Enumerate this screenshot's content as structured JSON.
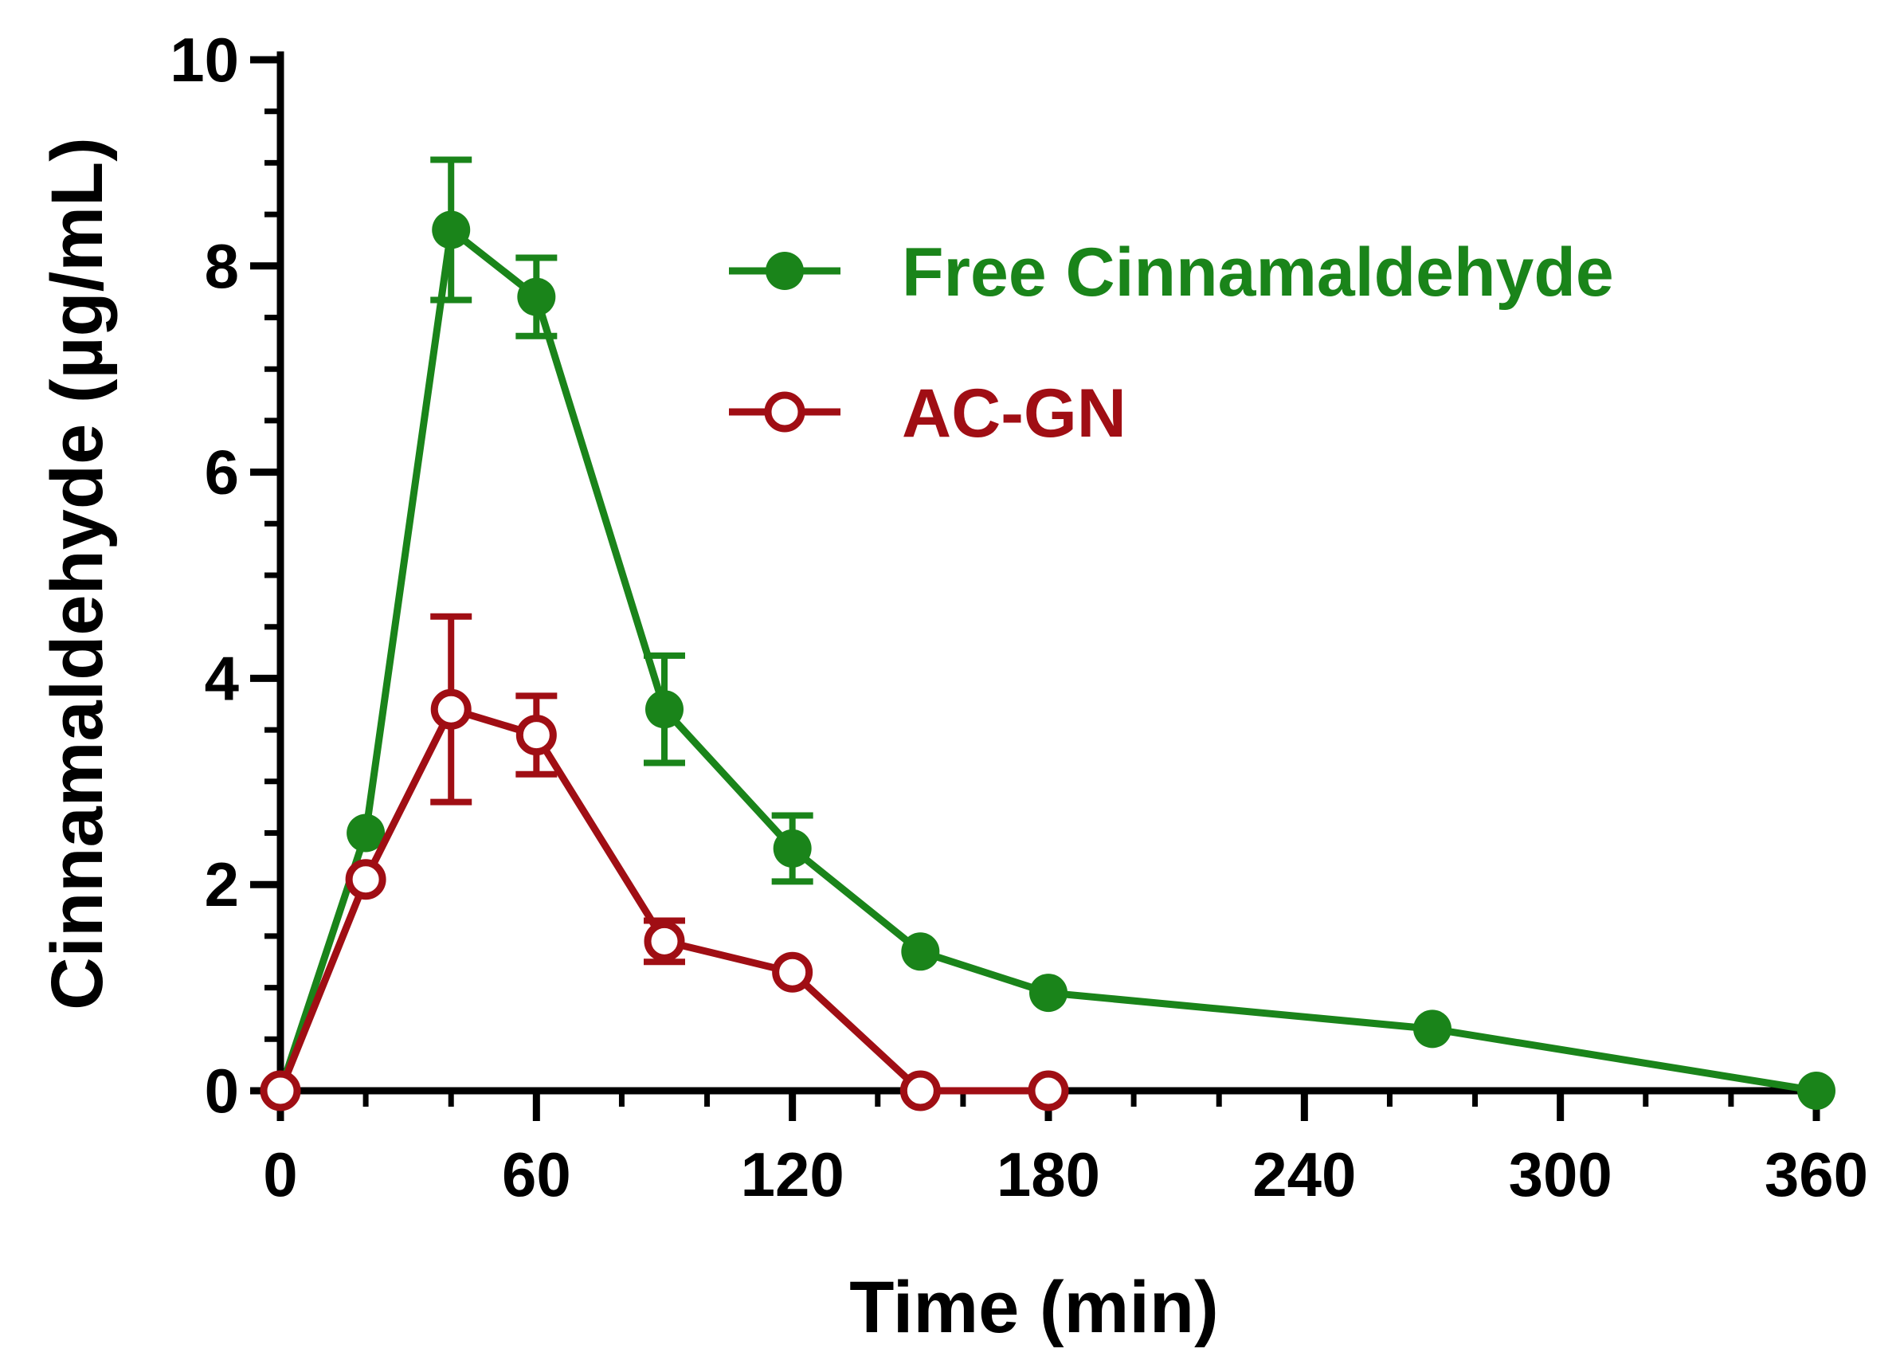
{
  "chart_data": {
    "type": "line",
    "title": "",
    "xlabel": "Time (min)",
    "ylabel": "Cinnamaldehyde (µg/mL)",
    "xlim": [
      0,
      360
    ],
    "ylim": [
      0,
      10
    ],
    "x_ticks": [
      0,
      60,
      120,
      180,
      240,
      300,
      360
    ],
    "x_tick_labels": [
      "0",
      "60",
      "120",
      "180",
      "240",
      "300",
      "360"
    ],
    "y_ticks": [
      0,
      2,
      4,
      6,
      8,
      10
    ],
    "y_tick_labels": [
      "0",
      "2",
      "4",
      "6",
      "8",
      "10"
    ],
    "grid": false,
    "legend_position": "top-right",
    "series": [
      {
        "name": "Free Cinnamaldehyde",
        "color": "#1a841a",
        "marker": "filled-circle",
        "x": [
          0,
          20,
          40,
          60,
          90,
          120,
          150,
          180,
          270,
          360
        ],
        "y": [
          0,
          2.5,
          8.35,
          7.7,
          3.7,
          2.35,
          1.35,
          0.95,
          0.6,
          0
        ],
        "error": [
          0,
          0,
          0.68,
          0.38,
          0.52,
          0.32,
          0,
          0,
          0,
          0
        ]
      },
      {
        "name": "AC-GN",
        "color": "#a00e14",
        "marker": "open-circle",
        "x": [
          0,
          20,
          40,
          60,
          90,
          120,
          150,
          180
        ],
        "y": [
          0,
          2.05,
          3.7,
          3.45,
          1.45,
          1.15,
          0,
          0
        ],
        "error": [
          0,
          0,
          0.9,
          0.38,
          0.2,
          0,
          0,
          0
        ]
      }
    ]
  }
}
